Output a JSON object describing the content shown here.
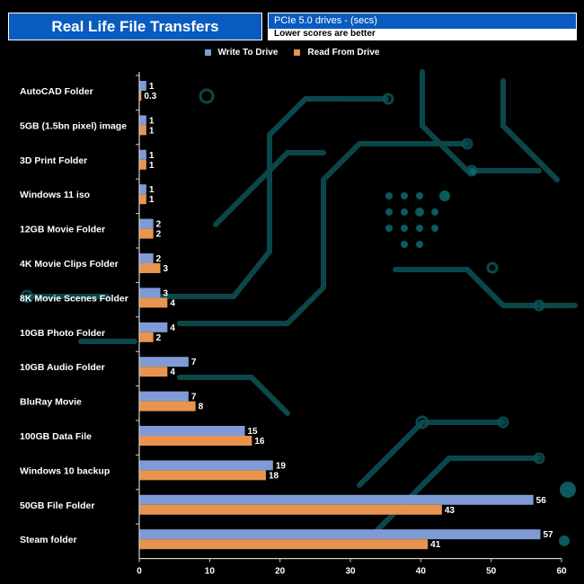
{
  "header": {
    "title": "Real Life File Transfers",
    "subtitle": "PCIe 5.0 drives - (secs)",
    "note": "Lower scores are better"
  },
  "colors": {
    "write": "#7e9bd6",
    "read": "#e8944e",
    "accent": "#0a5bc0",
    "circuit": "#0d4f52"
  },
  "chart_data": {
    "type": "bar",
    "orientation": "horizontal",
    "categories": [
      "AutoCAD Folder",
      "5GB (1.5bn pixel) image",
      "3D Print Folder",
      "Windows 11 iso",
      "12GB Movie Folder",
      "4K Movie Clips Folder",
      "8K Movie Scenes Folder",
      "10GB Photo Folder",
      "10GB Audio Folder",
      "BluRay Movie",
      "100GB Data File",
      "Windows 10 backup",
      "50GB File Folder",
      "Steam folder"
    ],
    "series": [
      {
        "name": "Write To  Drive",
        "values": [
          1,
          1,
          1,
          1,
          2,
          2,
          3,
          4,
          7,
          7,
          15,
          19,
          56,
          57
        ]
      },
      {
        "name": "Read From  Drive",
        "values": [
          0.3,
          1,
          1,
          1,
          2,
          3,
          4,
          2,
          4,
          8,
          16,
          18,
          43,
          41
        ]
      }
    ],
    "xlim": [
      0,
      60
    ],
    "xticks": [
      0,
      10,
      20,
      30,
      40,
      50,
      60
    ],
    "legend": "top-center",
    "grid": false
  }
}
